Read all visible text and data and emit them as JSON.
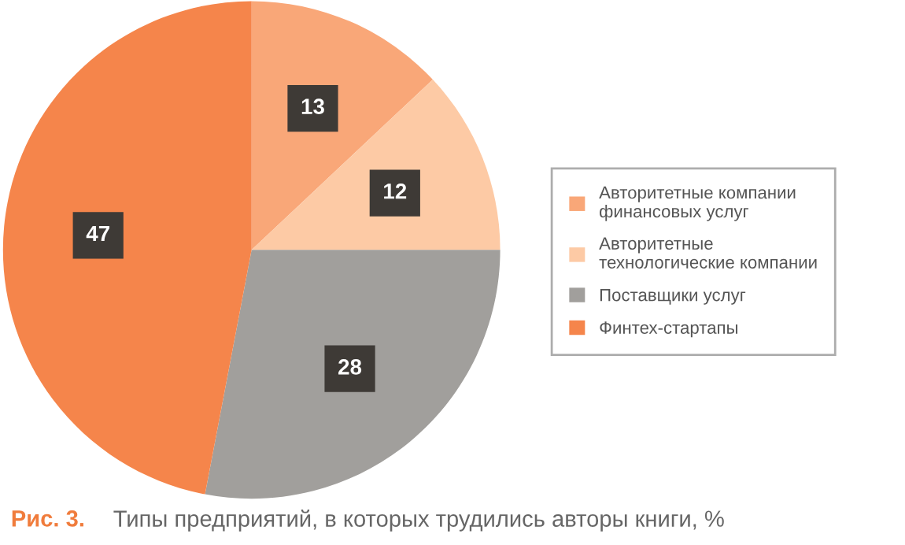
{
  "chart_data": {
    "type": "pie",
    "categories": [
      "Авторитетные компании\nфинансовых услуг",
      "Авторитетные\nтехнологические компании",
      "Поставщики услуг",
      "Финтех-стартапы"
    ],
    "values": [
      13,
      12,
      28,
      47
    ],
    "colors": [
      "#f9a778",
      "#fdcaa5",
      "#a19f9c",
      "#f5854b"
    ],
    "data_labels": true,
    "legend": "right",
    "annotations": [
      "Рис. 3.",
      "Типы предприятий, в которых трудились авторы книги, %"
    ]
  }
}
